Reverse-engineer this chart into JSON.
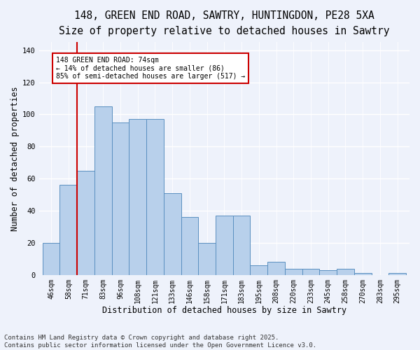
{
  "title_line1": "148, GREEN END ROAD, SAWTRY, HUNTINGDON, PE28 5XA",
  "title_line2": "Size of property relative to detached houses in Sawtry",
  "xlabel": "Distribution of detached houses by size in Sawtry",
  "ylabel": "Number of detached properties",
  "bin_labels": [
    "46sqm",
    "58sqm",
    "71sqm",
    "83sqm",
    "96sqm",
    "108sqm",
    "121sqm",
    "133sqm",
    "146sqm",
    "158sqm",
    "171sqm",
    "183sqm",
    "195sqm",
    "208sqm",
    "220sqm",
    "233sqm",
    "245sqm",
    "258sqm",
    "270sqm",
    "283sqm",
    "295sqm"
  ],
  "bar_heights": [
    20,
    56,
    65,
    105,
    95,
    97,
    97,
    51,
    36,
    20,
    37,
    37,
    6,
    8,
    4,
    4,
    3,
    4,
    1,
    0,
    1
  ],
  "bar_color": "#b8d0eb",
  "bar_edge_color": "#5a8fc0",
  "red_line_index": 2,
  "annotation_text": "148 GREEN END ROAD: 74sqm\n← 14% of detached houses are smaller (86)\n85% of semi-detached houses are larger (517) →",
  "annotation_box_color": "white",
  "annotation_box_edge_color": "#cc0000",
  "red_line_color": "#cc0000",
  "ylim": [
    0,
    145
  ],
  "yticks": [
    0,
    20,
    40,
    60,
    80,
    100,
    120,
    140
  ],
  "footer_line1": "Contains HM Land Registry data © Crown copyright and database right 2025.",
  "footer_line2": "Contains public sector information licensed under the Open Government Licence v3.0.",
  "background_color": "#eef2fb",
  "grid_color": "#ffffff",
  "title_fontsize": 10.5,
  "subtitle_fontsize": 9.5,
  "axis_label_fontsize": 8.5,
  "tick_fontsize": 7,
  "footer_fontsize": 6.5
}
